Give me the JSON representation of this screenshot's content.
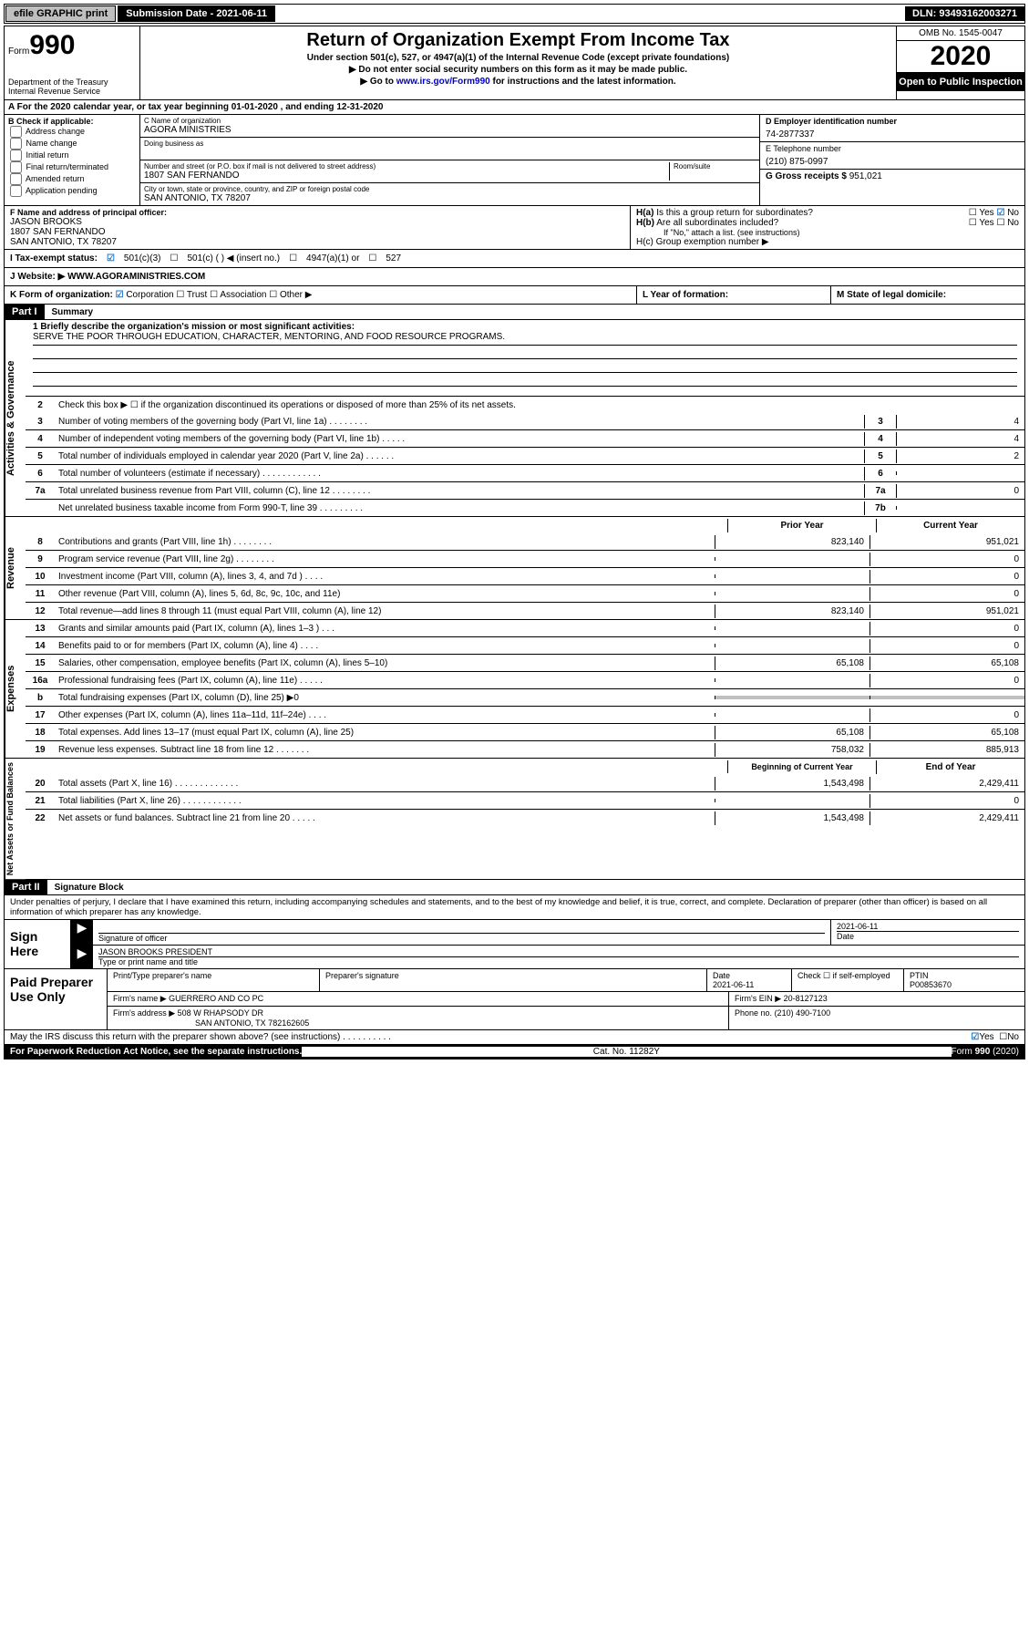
{
  "topbar": {
    "efile": "efile GRAPHIC print",
    "submission": "Submission Date - 2021-06-11",
    "dln": "DLN: 93493162003271"
  },
  "header": {
    "form_label": "Form",
    "form_number": "990",
    "dept": "Department of the Treasury\nInternal Revenue Service",
    "title": "Return of Organization Exempt From Income Tax",
    "subtitle1": "Under section 501(c), 527, or 4947(a)(1) of the Internal Revenue Code (except private foundations)",
    "subtitle2": "▶ Do not enter social security numbers on this form as it may be made public.",
    "subtitle3_pre": "▶ Go to ",
    "subtitle3_link": "www.irs.gov/Form990",
    "subtitle3_post": " for instructions and the latest information.",
    "omb": "OMB No. 1545-0047",
    "year": "2020",
    "open_public": "Open to Public Inspection"
  },
  "line_a": "A For the 2020 calendar year, or tax year beginning 01-01-2020     , and ending 12-31-2020",
  "box_b": {
    "label": "B Check if applicable:",
    "opts": [
      "Address change",
      "Name change",
      "Initial return",
      "Final return/terminated",
      "Amended return",
      "Application pending"
    ]
  },
  "box_c": {
    "name_label": "C Name of organization",
    "name": "AGORA MINISTRIES",
    "dba_label": "Doing business as",
    "street_label": "Number and street (or P.O. box if mail is not delivered to street address)",
    "room_label": "Room/suite",
    "street": "1807 SAN FERNANDO",
    "city_label": "City or town, state or province, country, and ZIP or foreign postal code",
    "city": "SAN ANTONIO, TX  78207"
  },
  "box_d": {
    "label": "D Employer identification number",
    "value": "74-2877337"
  },
  "box_e": {
    "label": "E Telephone number",
    "value": "(210) 875-0997"
  },
  "box_g": {
    "label": "G Gross receipts $",
    "value": "951,021"
  },
  "box_f": {
    "label": "F  Name and address of principal officer:",
    "name": "JASON BROOKS",
    "addr1": "1807 SAN FERNANDO",
    "addr2": "SAN ANTONIO, TX  78207"
  },
  "box_h": {
    "ha": "H(a)  Is this a group return for subordinates?",
    "hb": "H(b)  Are all subordinates included?",
    "hb_note": "If \"No,\" attach a list. (see instructions)",
    "hc": "H(c)  Group exemption number ▶",
    "yes": "Yes",
    "no": "No"
  },
  "row_i": {
    "label": "I    Tax-exempt status:",
    "opt1": "501(c)(3)",
    "opt2": "501(c) (   ) ◀ (insert no.)",
    "opt3": "4947(a)(1) or",
    "opt4": "527"
  },
  "row_j": {
    "label": "J   Website: ▶",
    "value": "WWW.AGORAMINISTRIES.COM"
  },
  "row_k": {
    "label": "K Form of organization:",
    "corp": "Corporation",
    "trust": "Trust",
    "assoc": "Association",
    "other": "Other ▶"
  },
  "row_l": "L Year of formation:",
  "row_m": "M State of legal domicile:",
  "part1": {
    "header": "Part I",
    "title": "Summary",
    "tab1": "Activities & Governance",
    "tab2": "Revenue",
    "tab3": "Expenses",
    "tab4": "Net Assets or Fund Balances",
    "line1_label": "1  Briefly describe the organization's mission or most significant activities:",
    "mission": "SERVE THE POOR THROUGH EDUCATION, CHARACTER, MENTORING, AND FOOD RESOURCE PROGRAMS.",
    "line2": "Check this box ▶ ☐  if the organization discontinued its operations or disposed of more than 25% of its net assets.",
    "rows_simple": [
      {
        "n": "3",
        "d": "Number of voting members of the governing body (Part VI, line 1a)  .    .    .    .    .    .    .    .",
        "c": "3",
        "v": "4"
      },
      {
        "n": "4",
        "d": "Number of independent voting members of the governing body (Part VI, line 1b)   .    .    .    .    .",
        "c": "4",
        "v": "4"
      },
      {
        "n": "5",
        "d": "Total number of individuals employed in calendar year 2020 (Part V, line 2a)  .    .    .    .    .    .",
        "c": "5",
        "v": "2"
      },
      {
        "n": "6",
        "d": "Total number of volunteers (estimate if necessary)  .    .    .    .    .    .    .    .    .    .    .    .",
        "c": "6",
        "v": ""
      },
      {
        "n": "7a",
        "d": "Total unrelated business revenue from Part VIII, column (C), line 12  .    .    .    .    .    .    .    .",
        "c": "7a",
        "v": "0"
      },
      {
        "n": "",
        "d": "Net unrelated business taxable income from Form 990-T, line 39   .    .    .    .    .    .    .    .    .",
        "c": "7b",
        "v": ""
      }
    ],
    "col_prior": "Prior Year",
    "col_current": "Current Year",
    "rows_rev": [
      {
        "n": "8",
        "d": "Contributions and grants (Part VIII, line 1h)   .    .    .    .    .    .    .    .",
        "p": "823,140",
        "c": "951,021"
      },
      {
        "n": "9",
        "d": "Program service revenue (Part VIII, line 2g)   .    .    .    .    .    .    .    .",
        "p": "",
        "c": "0"
      },
      {
        "n": "10",
        "d": "Investment income (Part VIII, column (A), lines 3, 4, and 7d )   .    .    .    .",
        "p": "",
        "c": "0"
      },
      {
        "n": "11",
        "d": "Other revenue (Part VIII, column (A), lines 5, 6d, 8c, 9c, 10c, and 11e)",
        "p": "",
        "c": "0"
      },
      {
        "n": "12",
        "d": "Total revenue—add lines 8 through 11 (must equal Part VIII, column (A), line 12)",
        "p": "823,140",
        "c": "951,021"
      }
    ],
    "rows_exp": [
      {
        "n": "13",
        "d": "Grants and similar amounts paid (Part IX, column (A), lines 1–3 )   .    .    .",
        "p": "",
        "c": "0"
      },
      {
        "n": "14",
        "d": "Benefits paid to or for members (Part IX, column (A), line 4)   .    .    .    .",
        "p": "",
        "c": "0"
      },
      {
        "n": "15",
        "d": "Salaries, other compensation, employee benefits (Part IX, column (A), lines 5–10)",
        "p": "65,108",
        "c": "65,108"
      },
      {
        "n": "16a",
        "d": "Professional fundraising fees (Part IX, column (A), line 11e)   .    .    .    .    .",
        "p": "",
        "c": "0"
      },
      {
        "n": "b",
        "d": "Total fundraising expenses (Part IX, column (D), line 25) ▶0",
        "p": "grey",
        "c": "grey"
      },
      {
        "n": "17",
        "d": "Other expenses (Part IX, column (A), lines 11a–11d, 11f–24e)  .    .    .    .",
        "p": "",
        "c": "0"
      },
      {
        "n": "18",
        "d": "Total expenses. Add lines 13–17 (must equal Part IX, column (A), line 25)",
        "p": "65,108",
        "c": "65,108"
      },
      {
        "n": "19",
        "d": "Revenue less expenses. Subtract line 18 from line 12  .    .    .    .    .    .    .",
        "p": "758,032",
        "c": "885,913"
      }
    ],
    "col_begin": "Beginning of Current Year",
    "col_end": "End of Year",
    "rows_net": [
      {
        "n": "20",
        "d": "Total assets (Part X, line 16)  .    .    .    .    .    .    .    .    .    .    .    .    .",
        "p": "1,543,498",
        "c": "2,429,411"
      },
      {
        "n": "21",
        "d": "Total liabilities (Part X, line 26)  .    .    .    .    .    .    .    .    .    .    .    .",
        "p": "",
        "c": "0"
      },
      {
        "n": "22",
        "d": "Net assets or fund balances. Subtract line 21 from line 20  .    .    .    .    .",
        "p": "1,543,498",
        "c": "2,429,411"
      }
    ]
  },
  "part2": {
    "header": "Part II",
    "title": "Signature Block",
    "decl": "Under penalties of perjury, I declare that I have examined this return, including accompanying schedules and statements, and to the best of my knowledge and belief, it is true, correct, and complete. Declaration of preparer (other than officer) is based on all information of which preparer has any knowledge.",
    "sign_here": "Sign Here",
    "sig_officer": "Signature of officer",
    "date_label": "Date",
    "date_val": "2021-06-11",
    "name_title": "JASON BROOKS PRESIDENT",
    "name_title_label": "Type or print name and title",
    "paid_prep": "Paid Preparer Use Only",
    "prep_name_label": "Print/Type preparer's name",
    "prep_sig_label": "Preparer's signature",
    "prep_date_label": "Date",
    "prep_date": "2021-06-11",
    "check_self": "Check ☐ if self-employed",
    "ptin_label": "PTIN",
    "ptin": "P00853670",
    "firm_name_label": "Firm's name      ▶",
    "firm_name": "GUERRERO AND CO PC",
    "firm_ein_label": "Firm's EIN ▶",
    "firm_ein": "20-8127123",
    "firm_addr_label": "Firm's address ▶",
    "firm_addr1": "508 W RHAPSODY DR",
    "firm_addr2": "SAN ANTONIO, TX  782162605",
    "phone_label": "Phone no.",
    "phone": "(210) 490-7100",
    "discuss": "May the IRS discuss this return with the preparer shown above? (see instructions)   .    .    .    .    .    .    .    .    .    .",
    "yes": "Yes",
    "no": "No"
  },
  "footer": {
    "paperwork": "For Paperwork Reduction Act Notice, see the separate instructions.",
    "catno": "Cat. No. 11282Y",
    "formno": "Form 990 (2020)"
  }
}
